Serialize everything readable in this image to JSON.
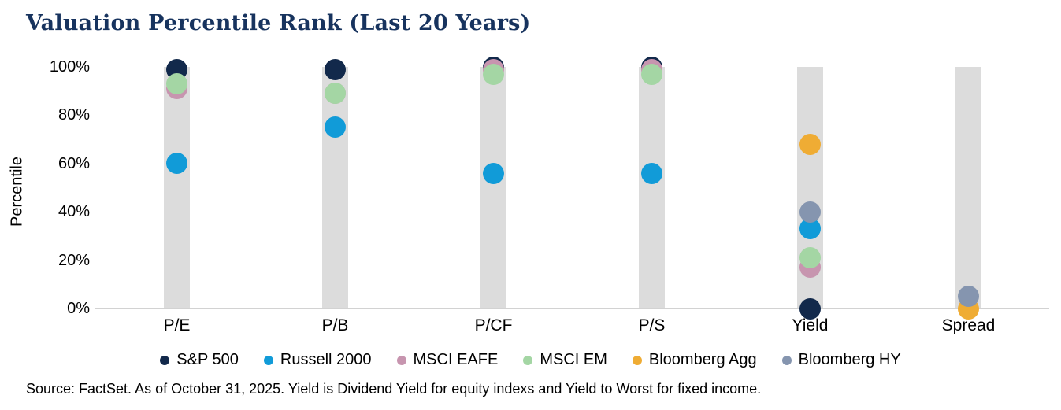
{
  "source_note": "Source: FactSet. As of October 31, 2025. Yield is Dividend Yield for equity indexs and Yield to Worst for fixed income.",
  "colors": {
    "title_navy": "#17335E",
    "bar_gray": "#DCDCDC",
    "baseline_gray": "#D2D2D2"
  },
  "chart_data": {
    "type": "scatter",
    "title": "Valuation Percentile Rank (Last 20 Years)",
    "ylabel": "Percentile",
    "ylim": [
      0,
      100
    ],
    "yticks": [
      "0%",
      "20%",
      "40%",
      "60%",
      "80%",
      "100%"
    ],
    "grid": false,
    "legend_position": "bottom",
    "categories": [
      "P/E",
      "P/B",
      "P/CF",
      "P/S",
      "Yield",
      "Spread"
    ],
    "category_bar_range": [
      0,
      100
    ],
    "series": [
      {
        "name": "S&P 500",
        "color": "#12294B",
        "values": [
          99,
          99,
          100,
          100,
          0,
          null
        ]
      },
      {
        "name": "Russell 2000",
        "color": "#119BD8",
        "values": [
          60,
          75,
          56,
          56,
          33,
          null
        ]
      },
      {
        "name": "MSCI EAFE",
        "color": "#C795AF",
        "values": [
          91,
          89,
          99,
          99,
          17,
          null
        ]
      },
      {
        "name": "MSCI EM",
        "color": "#A4D6A4",
        "values": [
          93,
          89,
          97,
          97,
          21,
          null
        ]
      },
      {
        "name": "Bloomberg Agg",
        "color": "#EFAC34",
        "values": [
          null,
          null,
          null,
          null,
          68,
          0
        ]
      },
      {
        "name": "Bloomberg HY",
        "color": "#8595AF",
        "values": [
          null,
          null,
          null,
          null,
          40,
          5
        ]
      }
    ]
  }
}
